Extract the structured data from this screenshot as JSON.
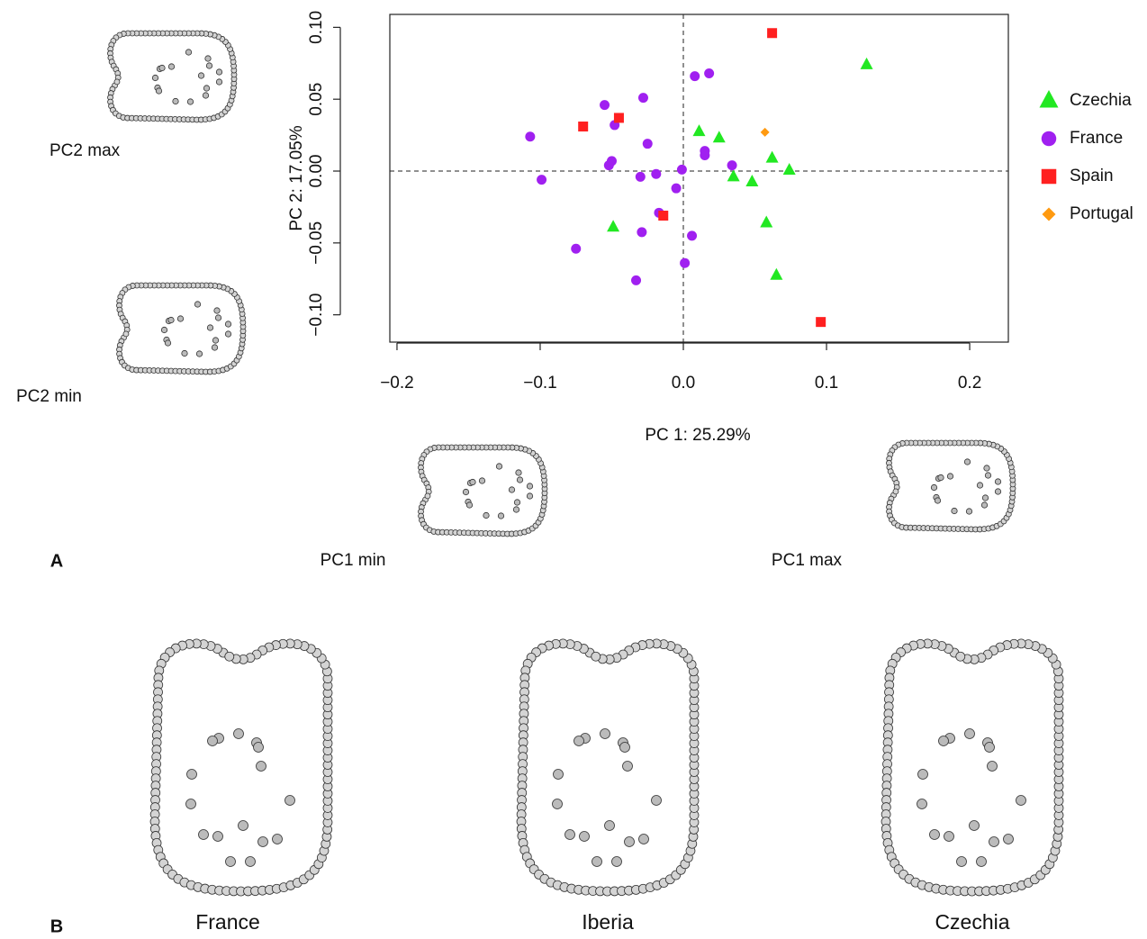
{
  "chart_data": {
    "type": "scatter",
    "xlabel": "PC 1: 25.29%",
    "ylabel": "PC 2: 17.05%",
    "xlim": [
      -0.205,
      0.227
    ],
    "ylim": [
      -0.119,
      0.109
    ],
    "xticks": [
      {
        "value": -0.2,
        "label": "−0.2"
      },
      {
        "value": -0.1,
        "label": "−0.1"
      },
      {
        "value": 0,
        "label": "0.0"
      },
      0.1,
      0.2
    ],
    "yticks": [
      {
        "value": -0.1,
        "label": "−0.10"
      },
      {
        "value": -0.05,
        "label": "−0.05"
      },
      {
        "value": 0,
        "label": "0.00"
      },
      {
        "value": 0.05,
        "label": "0.05"
      },
      {
        "value": 0.1,
        "label": "0.10"
      }
    ],
    "hlines": [
      0
    ],
    "vlines": [
      0
    ],
    "legend": "right",
    "series": [
      {
        "name": "Czechia",
        "color": "#22e822",
        "marker": "triangle",
        "x": [
          0.128,
          0.011,
          0.025,
          0.062,
          0.074,
          0.035,
          0.048,
          0.058,
          0.065,
          -0.049
        ],
        "values": [
          0.074,
          0.0275,
          0.023,
          0.009,
          0.0006,
          -0.004,
          -0.0075,
          -0.036,
          -0.0725,
          -0.039
        ]
      },
      {
        "name": "France",
        "color": "#a020f0",
        "marker": "circle",
        "x": [
          -0.107,
          -0.099,
          -0.055,
          -0.028,
          -0.048,
          -0.025,
          -0.05,
          -0.052,
          -0.03,
          -0.019,
          -0.001,
          -0.005,
          0.008,
          0.018,
          0.015,
          0.015,
          0.034,
          -0.017,
          -0.029,
          0.006,
          -0.075,
          -0.033,
          0.001
        ],
        "values": [
          0.024,
          -0.006,
          0.046,
          0.051,
          0.032,
          0.019,
          0.007,
          0.004,
          -0.004,
          -0.002,
          0.001,
          -0.012,
          0.066,
          0.068,
          0.014,
          0.011,
          0.004,
          -0.029,
          -0.0425,
          -0.045,
          -0.054,
          -0.076,
          -0.064
        ]
      },
      {
        "name": "Spain",
        "color": "#ff2020",
        "marker": "square",
        "x": [
          0.062,
          -0.07,
          -0.045,
          -0.014,
          0.096
        ],
        "values": [
          0.096,
          0.031,
          0.037,
          -0.031,
          -0.105
        ]
      },
      {
        "name": "Portugal",
        "color": "#ff9a10",
        "marker": "diamond",
        "x": [
          0.057
        ],
        "values": [
          0.027
        ]
      }
    ]
  },
  "panel_labels": [
    "A",
    "B"
  ],
  "shape_labels": [
    "PC2 max",
    "PC2 min",
    "PC1 min",
    "PC1 max"
  ],
  "group_labels": [
    "France",
    "Iberia",
    "Czechia"
  ]
}
